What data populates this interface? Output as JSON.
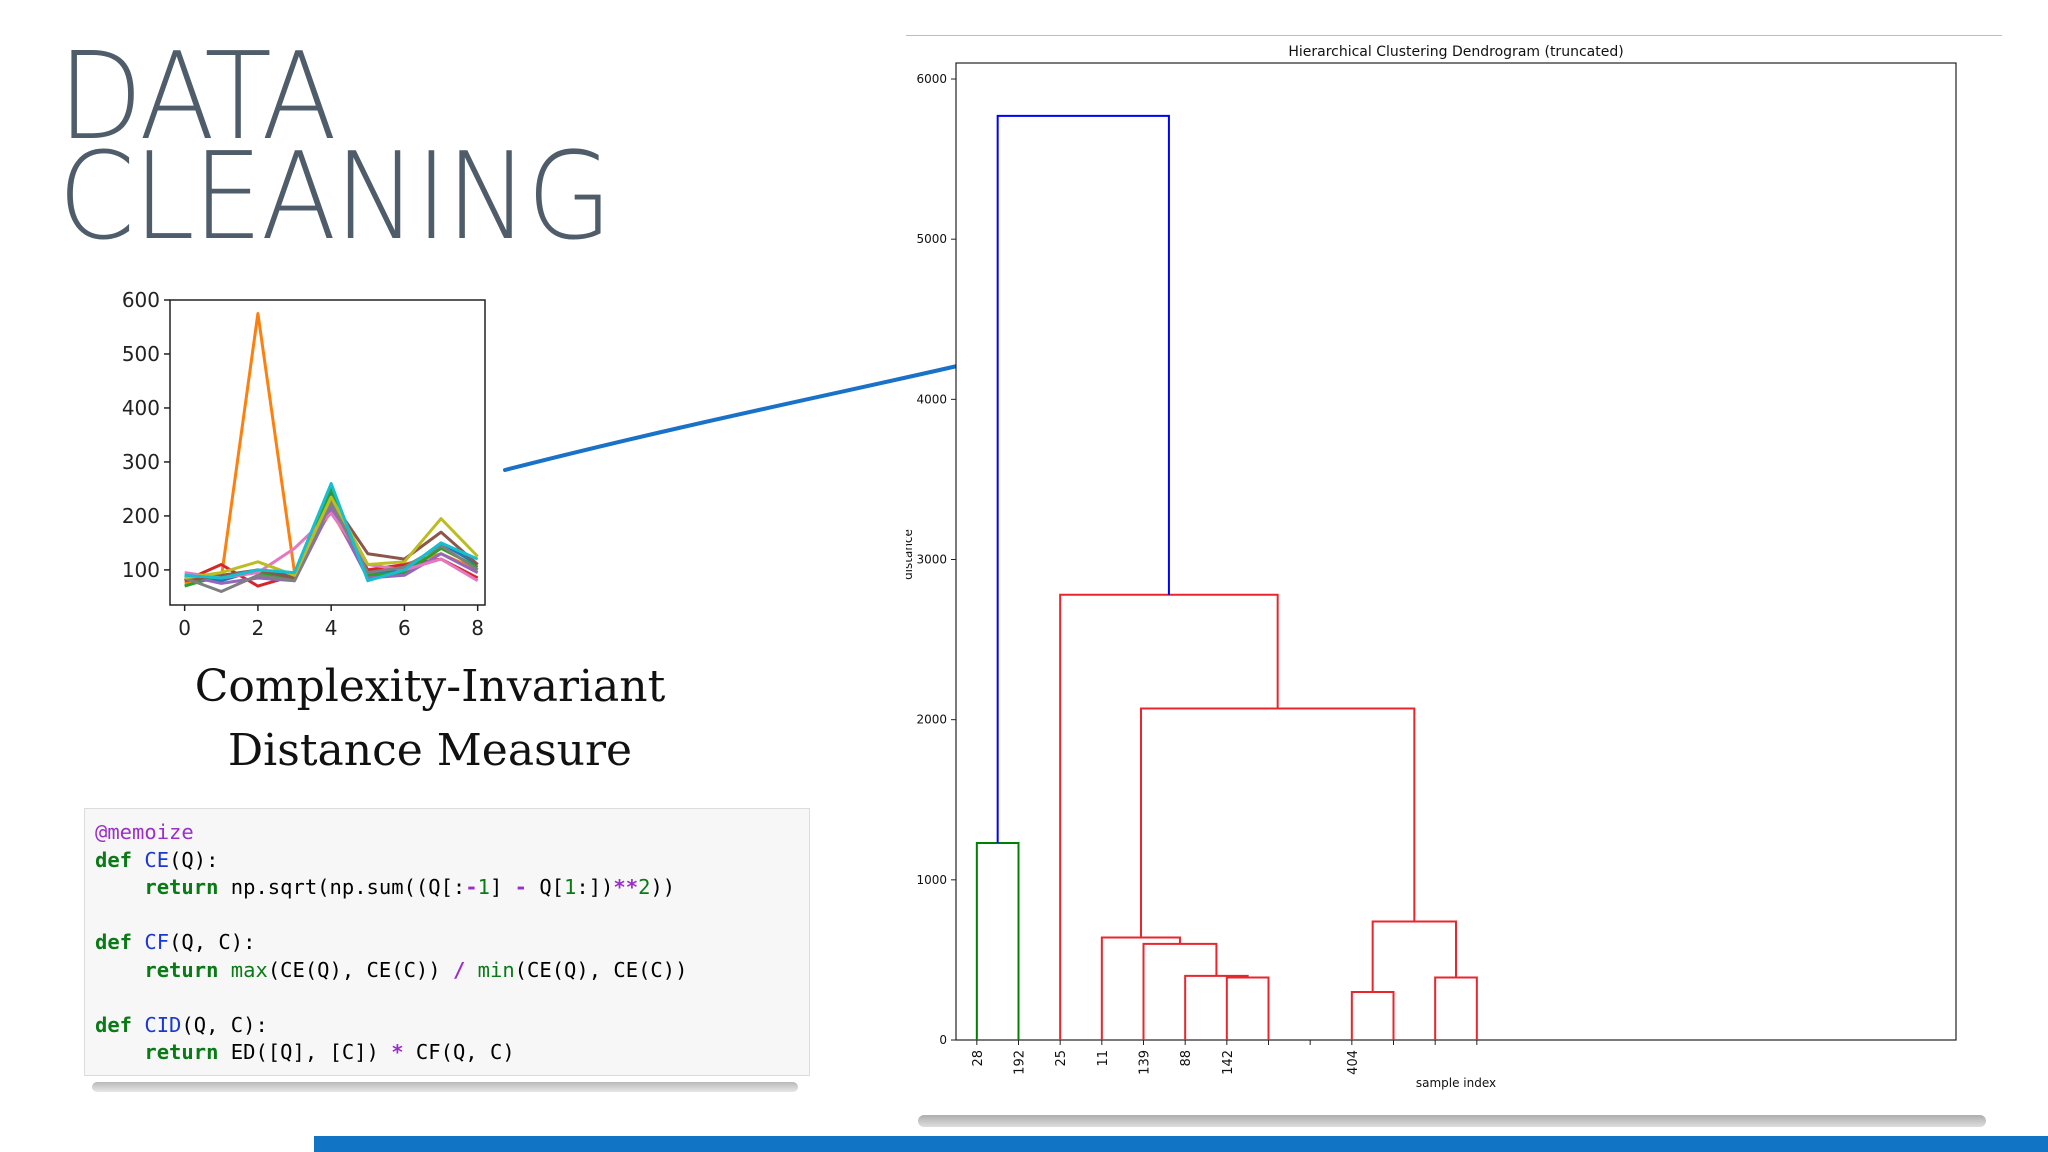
{
  "slide": {
    "title_line1": "DATA",
    "title_line2": "CLEANING",
    "caption_line1": "Complexity-Invariant",
    "caption_line2": "Distance Measure",
    "accent_color": "#1274c4"
  },
  "code": {
    "lines": [
      [
        {
          "t": "@memoize",
          "c": "dec"
        }
      ],
      [
        {
          "t": "def",
          "c": "kw"
        },
        {
          "t": " "
        },
        {
          "t": "CE",
          "c": "fn"
        },
        {
          "t": "(Q):"
        }
      ],
      [
        {
          "t": "    "
        },
        {
          "t": "return",
          "c": "kw"
        },
        {
          "t": " np.sqrt(np.sum((Q[:"
        },
        {
          "t": "-",
          "c": "op"
        },
        {
          "t": "1",
          "c": "num"
        },
        {
          "t": "] "
        },
        {
          "t": "-",
          "c": "op"
        },
        {
          "t": " Q["
        },
        {
          "t": "1",
          "c": "num"
        },
        {
          "t": ":])"
        },
        {
          "t": "**",
          "c": "op"
        },
        {
          "t": "2",
          "c": "num"
        },
        {
          "t": "))"
        }
      ],
      [
        {
          "t": ""
        }
      ],
      [
        {
          "t": "def",
          "c": "kw"
        },
        {
          "t": " "
        },
        {
          "t": "CF",
          "c": "fn"
        },
        {
          "t": "(Q, C):"
        }
      ],
      [
        {
          "t": "    "
        },
        {
          "t": "return",
          "c": "kw"
        },
        {
          "t": " "
        },
        {
          "t": "max",
          "c": "bi"
        },
        {
          "t": "(CE(Q), CE(C)) "
        },
        {
          "t": "/",
          "c": "op"
        },
        {
          "t": " "
        },
        {
          "t": "min",
          "c": "bi"
        },
        {
          "t": "(CE(Q), CE(C))"
        }
      ],
      [
        {
          "t": ""
        }
      ],
      [
        {
          "t": "def",
          "c": "kw"
        },
        {
          "t": " "
        },
        {
          "t": "CID",
          "c": "fn"
        },
        {
          "t": "(Q, C):"
        }
      ],
      [
        {
          "t": "    "
        },
        {
          "t": "return",
          "c": "kw"
        },
        {
          "t": " ED([Q], [C]) "
        },
        {
          "t": "*",
          "c": "op"
        },
        {
          "t": " CF(Q, C)"
        }
      ]
    ]
  },
  "chart_data": [
    {
      "type": "line",
      "title": "",
      "xlabel": "",
      "ylabel": "",
      "x": [
        0,
        1,
        2,
        3,
        4,
        5,
        6,
        7,
        8
      ],
      "xticks": [
        0,
        2,
        4,
        6,
        8
      ],
      "yticks": [
        100,
        200,
        300,
        400,
        500,
        600
      ],
      "xlim": [
        -0.4,
        8.2
      ],
      "ylim": [
        35,
        600
      ],
      "series": [
        {
          "color": "#ff7f0e",
          "values": [
            75,
            85,
            575,
            95,
            210,
            90,
            110,
            130,
            100
          ]
        },
        {
          "color": "#d62728",
          "values": [
            80,
            110,
            70,
            90,
            220,
            100,
            110,
            120,
            85
          ]
        },
        {
          "color": "#1f77b4",
          "values": [
            85,
            80,
            100,
            90,
            240,
            95,
            100,
            150,
            110
          ]
        },
        {
          "color": "#2ca02c",
          "values": [
            70,
            90,
            95,
            85,
            250,
            90,
            95,
            140,
            105
          ]
        },
        {
          "color": "#9467bd",
          "values": [
            90,
            75,
            85,
            80,
            215,
            85,
            90,
            130,
            95
          ]
        },
        {
          "color": "#8c564b",
          "values": [
            80,
            90,
            100,
            85,
            230,
            130,
            120,
            170,
            110
          ]
        },
        {
          "color": "#e377c2",
          "values": [
            95,
            85,
            95,
            140,
            205,
            110,
            100,
            120,
            80
          ]
        },
        {
          "color": "#7f7f7f",
          "values": [
            85,
            60,
            90,
            80,
            225,
            95,
            105,
            145,
            100
          ]
        },
        {
          "color": "#bcbd22",
          "values": [
            85,
            95,
            115,
            90,
            235,
            110,
            115,
            195,
            125
          ]
        },
        {
          "color": "#17becf",
          "values": [
            90,
            85,
            100,
            95,
            260,
            80,
            100,
            150,
            120
          ]
        }
      ]
    },
    {
      "type": "dendrogram",
      "title": "Hierarchical Clustering Dendrogram (truncated)",
      "xlabel": "sample index",
      "ylabel": "distance",
      "ylim": [
        0,
        6100
      ],
      "yticks": [
        0,
        1000,
        2000,
        3000,
        4000,
        5000,
        6000
      ],
      "xlim": [
        0,
        240
      ],
      "leaves": [
        {
          "x": 5,
          "label": "28"
        },
        {
          "x": 15,
          "label": "192"
        },
        {
          "x": 25,
          "label": "25"
        },
        {
          "x": 35,
          "label": "11"
        },
        {
          "x": 45,
          "label": "139"
        },
        {
          "x": 55,
          "label": "88"
        },
        {
          "x": 65,
          "label": "142"
        },
        {
          "x": 75,
          "label": ""
        },
        {
          "x": 85,
          "label": ""
        },
        {
          "x": 95,
          "label": "404"
        },
        {
          "x": 105,
          "label": ""
        },
        {
          "x": 115,
          "label": ""
        },
        {
          "x": 125,
          "label": ""
        }
      ],
      "links": [
        {
          "x": [
            5,
            15
          ],
          "h": 1230,
          "lb": 0,
          "rb": 0,
          "color": "#008000"
        },
        {
          "x": [
            65,
            75
          ],
          "h": 390,
          "lb": 0,
          "rb": 0,
          "color": "#e8262c"
        },
        {
          "x": [
            55,
            70
          ],
          "h": 400,
          "lb": 0,
          "rb": 390,
          "color": "#e8262c"
        },
        {
          "x": [
            45,
            62.5
          ],
          "h": 600,
          "lb": 0,
          "rb": 400,
          "color": "#e8262c"
        },
        {
          "x": [
            35,
            53.75
          ],
          "h": 640,
          "lb": 0,
          "rb": 600,
          "color": "#e8262c"
        },
        {
          "x": [
            95,
            105
          ],
          "h": 300,
          "lb": 0,
          "rb": 0,
          "color": "#e8262c"
        },
        {
          "x": [
            115,
            125
          ],
          "h": 390,
          "lb": 0,
          "rb": 0,
          "color": "#e8262c"
        },
        {
          "x": [
            100,
            120
          ],
          "h": 740,
          "lb": 300,
          "rb": 390,
          "color": "#e8262c"
        },
        {
          "x": [
            44.4,
            110
          ],
          "h": 2070,
          "lb": 640,
          "rb": 740,
          "color": "#e8262c"
        },
        {
          "x": [
            25,
            77.2
          ],
          "h": 2780,
          "lb": 0,
          "rb": 2070,
          "color": "#e8262c"
        },
        {
          "x": [
            10,
            51.1
          ],
          "h": 5770,
          "lb": 1230,
          "rb": 2780,
          "color": "#0000ff"
        }
      ]
    }
  ]
}
